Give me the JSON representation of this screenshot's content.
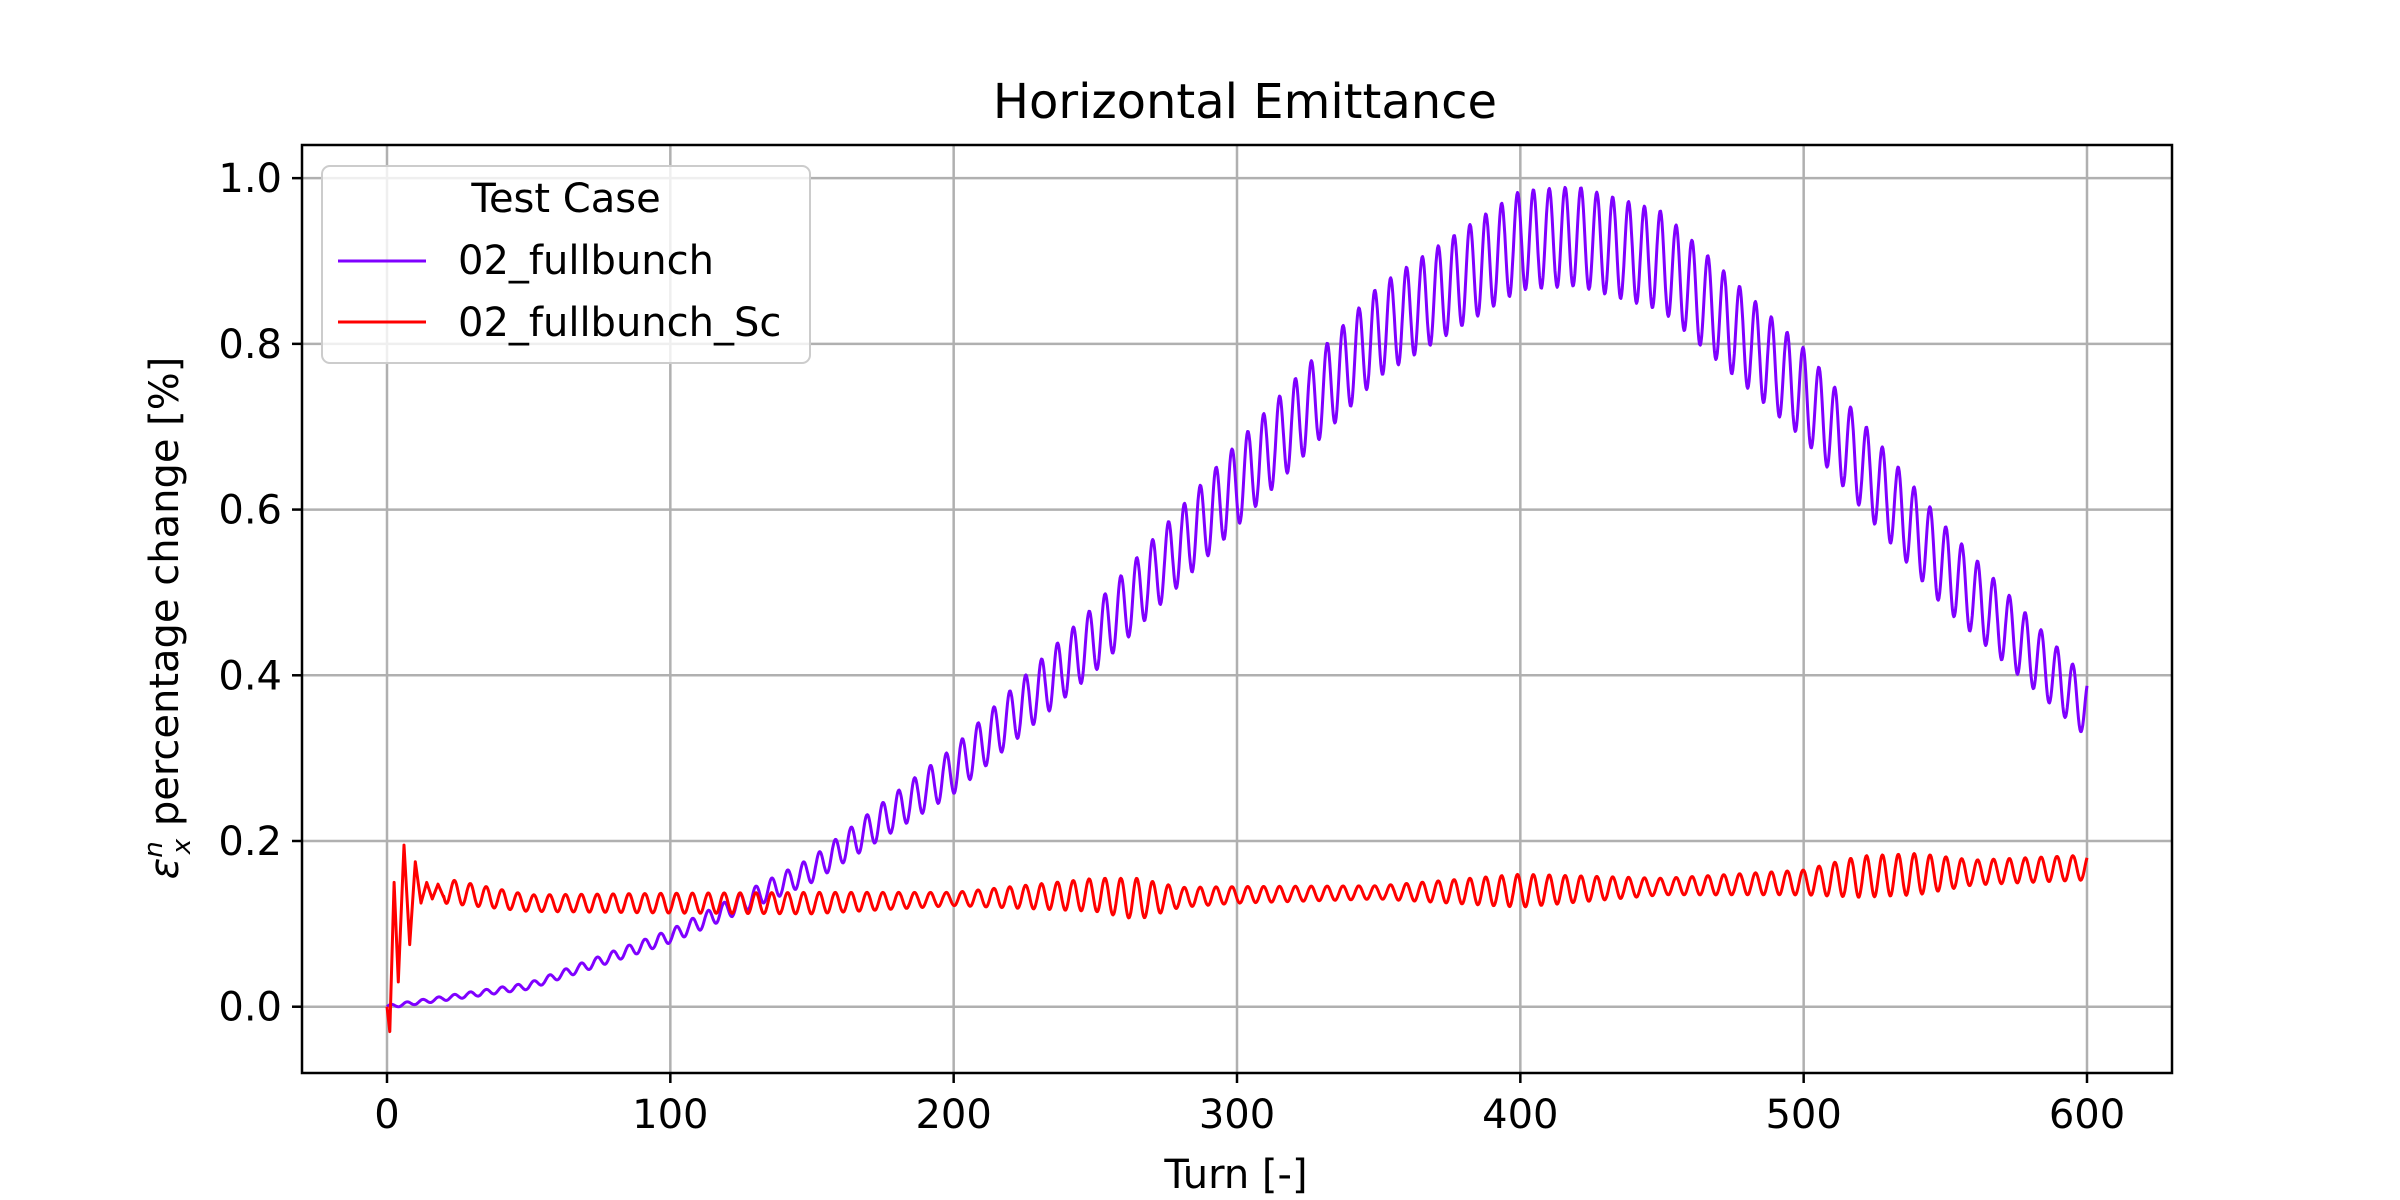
{
  "chart_data": {
    "type": "line",
    "title": "Horizontal Emittance",
    "xlabel": "Turn [-]",
    "ylabel_symbol": "ε",
    "ylabel_sub": "x",
    "ylabel_sup": "n",
    "ylabel_rest": " percentage change [%]",
    "xlim": [
      -30,
      630
    ],
    "ylim": [
      -0.08,
      1.04
    ],
    "xticks": [
      0,
      100,
      200,
      300,
      400,
      500,
      600
    ],
    "yticks": [
      0.0,
      0.2,
      0.4,
      0.6,
      0.8,
      1.0
    ],
    "xtick_labels": [
      "0",
      "100",
      "200",
      "300",
      "400",
      "500",
      "600"
    ],
    "ytick_labels": [
      "0.0",
      "0.2",
      "0.4",
      "0.6",
      "0.8",
      "1.0"
    ],
    "grid": true,
    "legend": {
      "title": "Test Case",
      "placement": "upper-left"
    },
    "oscillation_period_turns": 5.6,
    "series": [
      {
        "name": "02_fullbunch",
        "color": "#7f00ff",
        "envelope_x": [
          0,
          50,
          100,
          150,
          200,
          250,
          300,
          350,
          400,
          420,
          450,
          500,
          550,
          600
        ],
        "envelope_mean": [
          0.0,
          0.025,
          0.085,
          0.165,
          0.285,
          0.445,
          0.63,
          0.815,
          0.925,
          0.93,
          0.9,
          0.74,
          0.53,
          0.36
        ],
        "envelope_amp": [
          0.002,
          0.004,
          0.008,
          0.015,
          0.028,
          0.04,
          0.05,
          0.055,
          0.06,
          0.06,
          0.06,
          0.055,
          0.05,
          0.035
        ]
      },
      {
        "name": "02_fullbunch_Sc",
        "color": "#ff0000",
        "envelope_x": [
          0,
          5,
          10,
          20,
          50,
          100,
          150,
          200,
          250,
          265,
          280,
          300,
          350,
          400,
          450,
          500,
          520,
          540,
          560,
          600
        ],
        "envelope_mean": [
          0.0,
          0.12,
          0.135,
          0.14,
          0.125,
          0.125,
          0.125,
          0.13,
          0.135,
          0.13,
          0.132,
          0.135,
          0.138,
          0.14,
          0.145,
          0.15,
          0.157,
          0.16,
          0.162,
          0.168
        ],
        "envelope_amp": [
          0.0,
          0.08,
          0.04,
          0.015,
          0.01,
          0.012,
          0.013,
          0.008,
          0.02,
          0.025,
          0.012,
          0.01,
          0.008,
          0.02,
          0.01,
          0.015,
          0.025,
          0.025,
          0.015,
          0.015
        ],
        "initial_points": [
          [
            0,
            0.0
          ],
          [
            1,
            -0.03
          ],
          [
            2.5,
            0.15
          ],
          [
            4,
            0.03
          ],
          [
            6,
            0.195
          ],
          [
            8,
            0.075
          ],
          [
            10,
            0.175
          ],
          [
            12,
            0.125
          ],
          [
            14,
            0.15
          ],
          [
            16,
            0.13
          ],
          [
            18,
            0.148
          ],
          [
            20,
            0.132
          ]
        ]
      }
    ]
  }
}
